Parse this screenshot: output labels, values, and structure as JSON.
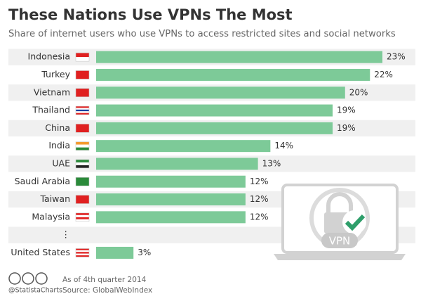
{
  "chart_data": {
    "type": "bar",
    "orientation": "horizontal",
    "title": "These Nations Use VPNs The Most",
    "subtitle": "Share of internet users who use VPNs to access restricted sites and social networks",
    "categories": [
      "Indonesia",
      "Turkey",
      "Vietnam",
      "Thailand",
      "China",
      "India",
      "UAE",
      "Saudi Arabia",
      "Taiwan",
      "Malaysia",
      "⋮",
      "United States"
    ],
    "values": [
      23,
      22,
      20,
      19,
      19,
      14,
      13,
      12,
      12,
      12,
      null,
      3
    ],
    "value_labels": [
      "23%",
      "22%",
      "20%",
      "19%",
      "19%",
      "14%",
      "13%",
      "12%",
      "12%",
      "12%",
      null,
      "3%"
    ],
    "color": "#7dca98",
    "icon_label": "VPN",
    "credit": "@StatistaCharts",
    "note": "As of 4th quarter 2014",
    "source": "Source: GlobalWebIndex"
  }
}
